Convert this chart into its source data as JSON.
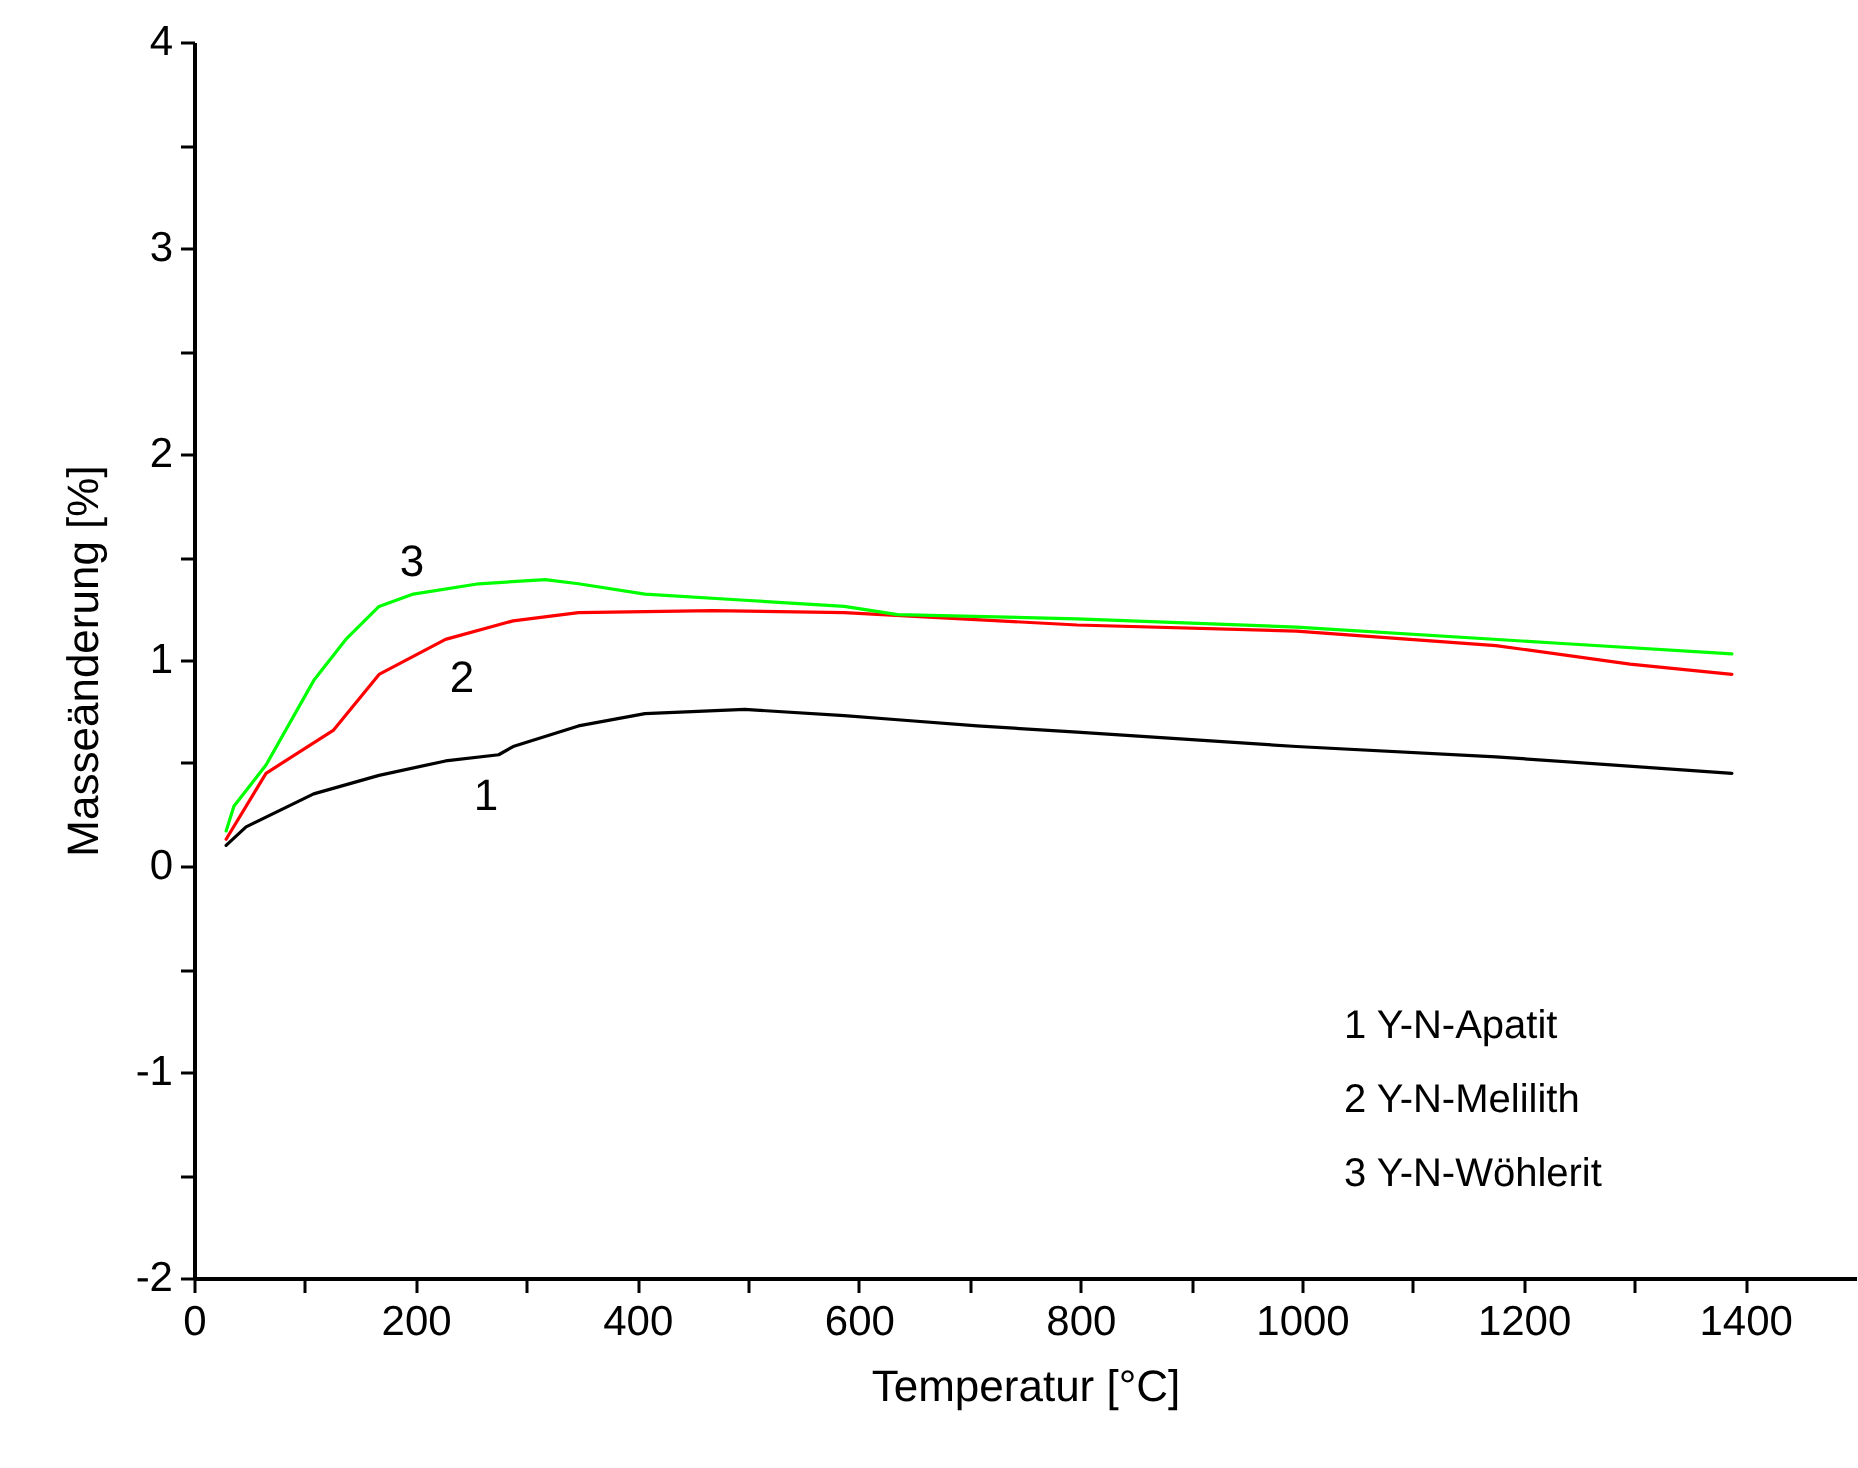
{
  "chart_data": {
    "type": "line",
    "xlabel": "Temperatur [°C]",
    "ylabel": "Masseänderung [%]",
    "xlim": [
      0,
      1500
    ],
    "ylim": [
      -2,
      4
    ],
    "xticks": [
      0,
      {
        "value": 100,
        "label": null
      },
      200,
      {
        "value": 300,
        "label": null
      },
      400,
      {
        "value": 500,
        "label": null
      },
      600,
      {
        "value": 700,
        "label": null
      },
      800,
      {
        "value": 900,
        "label": null
      },
      1000,
      {
        "value": 1100,
        "label": null
      },
      1200,
      {
        "value": 1300,
        "label": null
      },
      1400
    ],
    "yticks": [
      -2,
      {
        "value": -1.5,
        "label": null
      },
      -1,
      {
        "value": -0.5,
        "label": null
      },
      0,
      {
        "value": 0.5,
        "label": null
      },
      1,
      {
        "value": 1.5,
        "label": null
      },
      2,
      {
        "value": 2.5,
        "label": null
      },
      3,
      {
        "value": 3.5,
        "label": null
      },
      4
    ],
    "grid": false,
    "marker": "none",
    "line_style": "solid",
    "series": [
      {
        "color": "#000000",
        "x": [
          29,
          47,
          108,
          167,
          227,
          275,
          288,
          347,
          407,
          497,
          587,
          635,
          707,
          797,
          995,
          1175,
          1388
        ],
        "values": [
          0.1,
          0.19,
          0.35,
          0.44,
          0.51,
          0.54,
          0.58,
          0.68,
          0.74,
          0.76,
          0.73,
          0.71,
          0.68,
          0.65,
          0.58,
          0.53,
          0.45
        ]
      },
      {
        "color": "#ff0000",
        "x": [
          29,
          65,
          126,
          167,
          227,
          288,
          347,
          468,
          587,
          797,
          995,
          1175,
          1296,
          1388
        ],
        "values": [
          0.13,
          0.45,
          0.66,
          0.93,
          1.1,
          1.19,
          1.23,
          1.24,
          1.23,
          1.17,
          1.14,
          1.07,
          0.98,
          0.93
        ]
      },
      {
        "color": "#00ff00",
        "x": [
          29,
          36,
          65,
          108,
          137,
          167,
          198,
          257,
          317,
          347,
          407,
          497,
          587,
          635,
          797,
          995,
          1235,
          1388
        ],
        "values": [
          0.17,
          0.29,
          0.49,
          0.9,
          1.1,
          1.26,
          1.32,
          1.37,
          1.39,
          1.37,
          1.32,
          1.29,
          1.26,
          1.22,
          1.2,
          1.16,
          1.08,
          1.03
        ]
      }
    ],
    "annotations": [
      "3",
      "2",
      "1",
      "1 Y-N-Apatit",
      "2 Y-N-Melilith",
      "3 Y-N-Wöhlerit"
    ]
  }
}
